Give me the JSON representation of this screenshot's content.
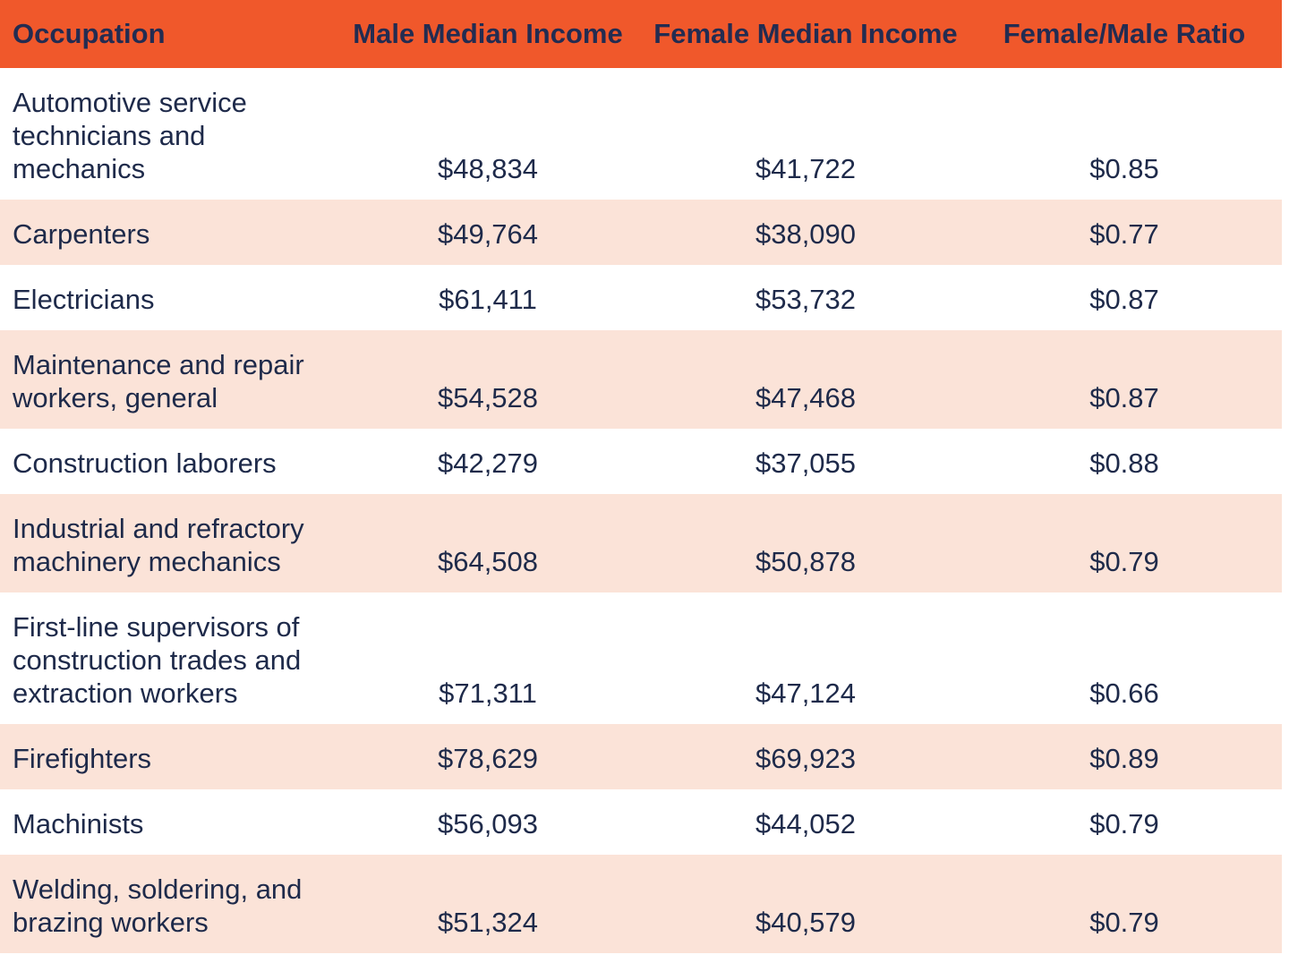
{
  "colors": {
    "header_bg": "#F0582B",
    "row_alt_bg": "#FBE3D8",
    "header_text": "#232C51",
    "body_text": "#1E2A4A"
  },
  "chart_data": {
    "type": "table",
    "columns": [
      "Occupation",
      "Male Median Income",
      "Female Median Income",
      "Female/Male Ratio"
    ],
    "rows": [
      {
        "occupation": "Automotive service technicians and mechanics",
        "male": "$48,834",
        "female": "$41,722",
        "ratio": "$0.85"
      },
      {
        "occupation": "Carpenters",
        "male": "$49,764",
        "female": "$38,090",
        "ratio": "$0.77"
      },
      {
        "occupation": "Electricians",
        "male": "$61,411",
        "female": "$53,732",
        "ratio": "$0.87"
      },
      {
        "occupation": "Maintenance and repair workers, general",
        "male": "$54,528",
        "female": "$47,468",
        "ratio": "$0.87"
      },
      {
        "occupation": "Construction laborers",
        "male": "$42,279",
        "female": "$37,055",
        "ratio": "$0.88"
      },
      {
        "occupation": "Industrial and refractory machinery mechanics",
        "male": "$64,508",
        "female": "$50,878",
        "ratio": "$0.79"
      },
      {
        "occupation": "First-line supervisors of construction trades and extraction workers",
        "male": "$71,311",
        "female": "$47,124",
        "ratio": "$0.66"
      },
      {
        "occupation": "Firefighters",
        "male": "$78,629",
        "female": "$69,923",
        "ratio": "$0.89"
      },
      {
        "occupation": "Machinists",
        "male": "$56,093",
        "female": "$44,052",
        "ratio": "$0.79"
      },
      {
        "occupation": "Welding, soldering, and brazing workers",
        "male": "$51,324",
        "female": "$40,579",
        "ratio": "$0.79"
      }
    ]
  }
}
